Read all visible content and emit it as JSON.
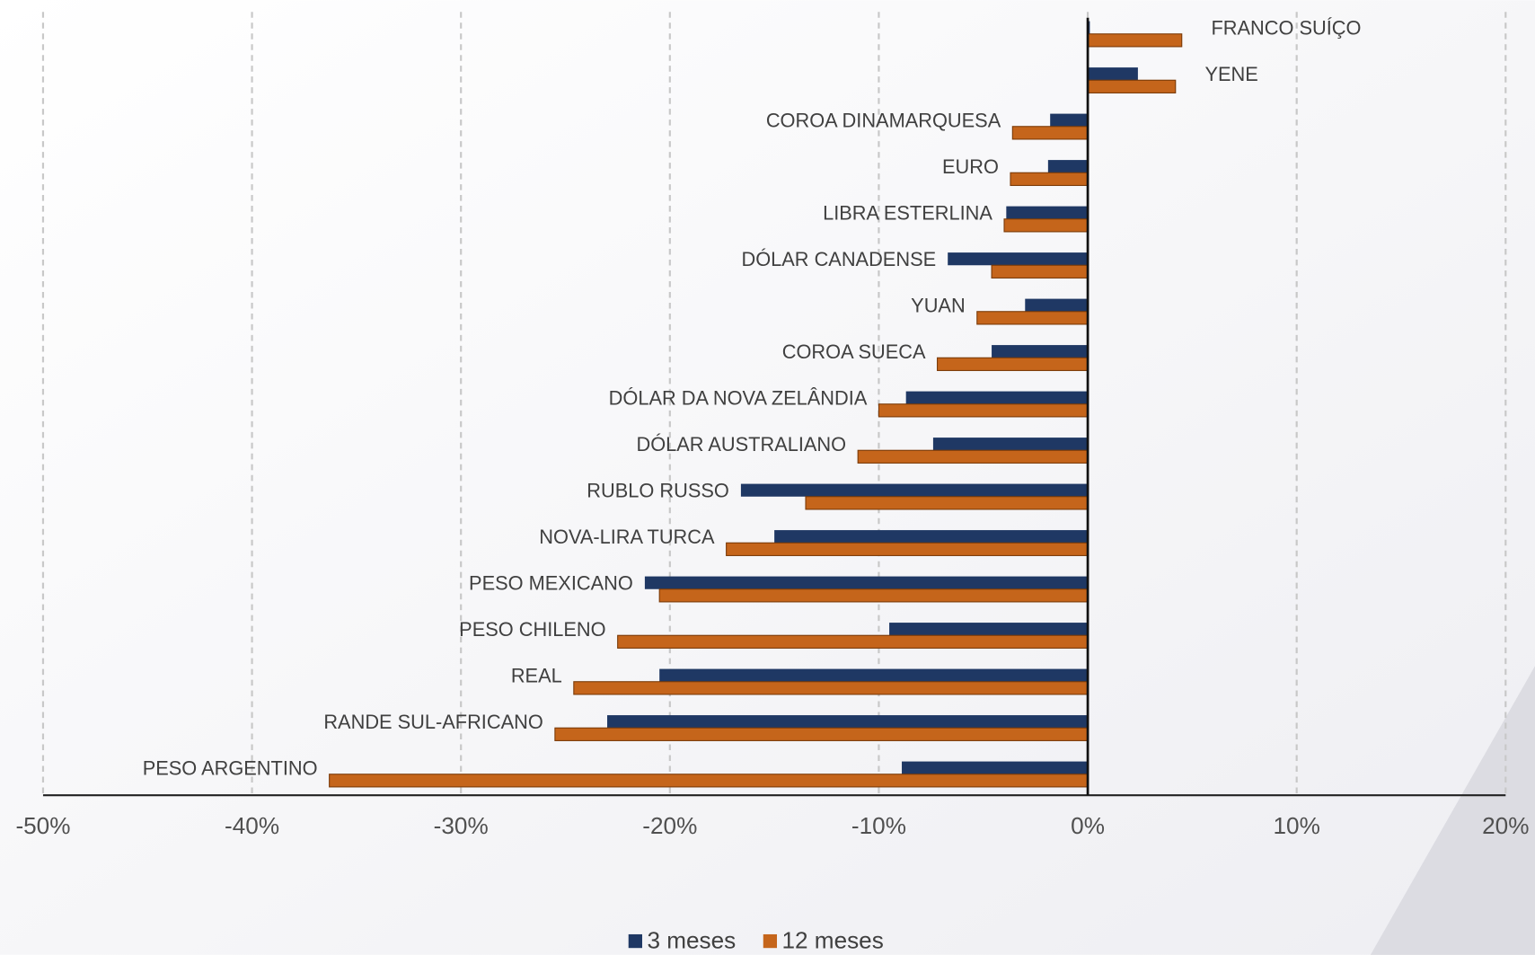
{
  "chart_data": {
    "type": "barh",
    "categories": [
      "FRANCO SUÍÇO",
      "YENE",
      "COROA DINAMARQUESA",
      "EURO",
      "LIBRA ESTERLINA",
      "DÓLAR CANADENSE",
      "YUAN",
      "COROA SUECA",
      "DÓLAR DA NOVA ZELÂNDIA",
      "DÓLAR AUSTRALIANO",
      "RUBLO RUSSO",
      "NOVA-LIRA TURCA",
      "PESO MEXICANO",
      "PESO CHILENO",
      "REAL",
      "RANDE SUL-AFRICANO",
      "PESO ARGENTINO"
    ],
    "series": [
      {
        "name": "3 meses",
        "color": "#1f3864",
        "values": [
          0.1,
          2.4,
          -1.8,
          -1.9,
          -3.9,
          -6.7,
          -3.0,
          -4.6,
          -8.7,
          -7.4,
          -16.6,
          -15.0,
          -21.2,
          -9.5,
          -20.5,
          -23.0,
          -8.9
        ]
      },
      {
        "name": "12 meses",
        "color": "#c5651b",
        "values": [
          4.5,
          4.2,
          -3.6,
          -3.7,
          -4.0,
          -4.6,
          -5.3,
          -7.2,
          -10.0,
          -11.0,
          -13.5,
          -17.3,
          -20.5,
          -22.5,
          -24.6,
          -25.5,
          -36.3
        ]
      }
    ],
    "xlim": [
      -50,
      20
    ],
    "xticks": [
      {
        "value": -50,
        "label": "-50%"
      },
      {
        "value": -40,
        "label": "-40%"
      },
      {
        "value": -30,
        "label": "-30%"
      },
      {
        "value": -20,
        "label": "-20%"
      },
      {
        "value": -10,
        "label": "-10%"
      },
      {
        "value": 0,
        "label": "0%"
      },
      {
        "value": 10,
        "label": "10%"
      },
      {
        "value": 20,
        "label": "20%"
      }
    ],
    "grid": true,
    "legend": "bottom"
  }
}
